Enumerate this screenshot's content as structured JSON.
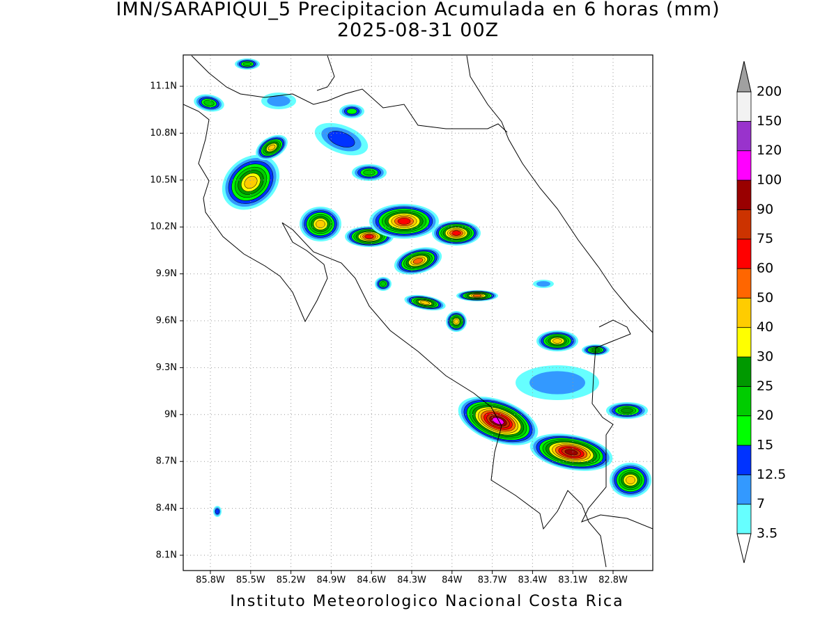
{
  "header": {
    "title": "IMN/SARAPIQUI_5 Precipitacion Acumulada en 6 horas (mm)",
    "subtitle": "2025-08-31 00Z"
  },
  "map": {
    "lat_labels": [
      "11.1N",
      "10.8N",
      "10.5N",
      "10.2N",
      "9.9N",
      "9.6N",
      "9.3N",
      "9N",
      "8.7N",
      "8.4N",
      "8.1N"
    ],
    "lon_labels": [
      "85.8W",
      "85.5W",
      "85.2W",
      "84.9W",
      "84.6W",
      "84.3W",
      "84W",
      "83.7W",
      "83.4W",
      "83.1W",
      "82.8W"
    ]
  },
  "legend": {
    "levels": [
      3.5,
      7,
      12.5,
      15,
      20,
      25,
      30,
      40,
      50,
      60,
      75,
      90,
      100,
      120,
      150,
      200
    ],
    "colors": [
      "#66ffff",
      "#3399ff",
      "#0033ff",
      "#00ff00",
      "#00cc00",
      "#009900",
      "#ffff00",
      "#ffcc00",
      "#ff6600",
      "#ff0000",
      "#cc3300",
      "#990000",
      "#ff00ff",
      "#9933cc",
      "#f2f2f2"
    ],
    "under_color": "#ffffff",
    "over_color": "#a0a0a0"
  },
  "footer": "Instituto Meteorologico Nacional Costa Rica"
}
